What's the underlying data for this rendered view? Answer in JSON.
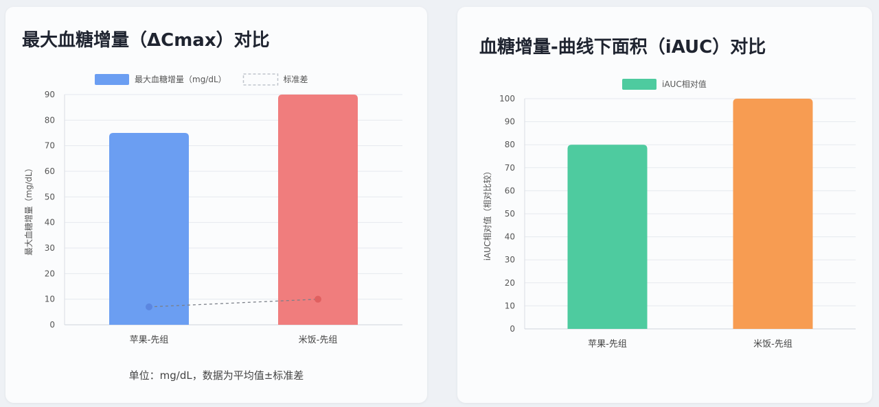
{
  "left_card": {
    "title": "最大血糖增量（ΔCmax）对比",
    "footnote": "单位：mg/dL，数据为平均值±标准差"
  },
  "right_card": {
    "title": "血糖增量-曲线下面积（iAUC）对比"
  },
  "chart_data": [
    {
      "type": "bar",
      "title": "最大血糖增量（ΔCmax）对比",
      "categories": [
        "苹果-先组",
        "米饭-先组"
      ],
      "series": [
        {
          "name": "最大血糖增量（mg/dL）",
          "values": [
            75,
            90
          ],
          "colors": [
            "#6b9ef2",
            "#f07d7d"
          ],
          "kind": "bar"
        },
        {
          "name": "标准差",
          "values": [
            7,
            10
          ],
          "colors": [
            "#5b86e0",
            "#e06060"
          ],
          "kind": "dashed-line"
        }
      ],
      "ylabel": "最大血糖增量（mg/dL）",
      "ylim": [
        0,
        90
      ],
      "yticks": [
        0,
        10,
        20,
        30,
        40,
        50,
        60,
        70,
        80,
        90
      ],
      "grid": true,
      "legend": "top-center"
    },
    {
      "type": "bar",
      "title": "血糖增量-曲线下面积（iAUC）对比",
      "categories": [
        "苹果-先组",
        "米饭-先组"
      ],
      "series": [
        {
          "name": "iAUC相对值",
          "values": [
            80,
            100
          ],
          "colors": [
            "#4ecb9f",
            "#f79c52"
          ],
          "kind": "bar"
        }
      ],
      "ylabel": "iAUC相对值（相对比较）",
      "ylim": [
        0,
        100
      ],
      "yticks": [
        0,
        10,
        20,
        30,
        40,
        50,
        60,
        70,
        80,
        90,
        100
      ],
      "grid": true,
      "legend": "top-center"
    }
  ]
}
